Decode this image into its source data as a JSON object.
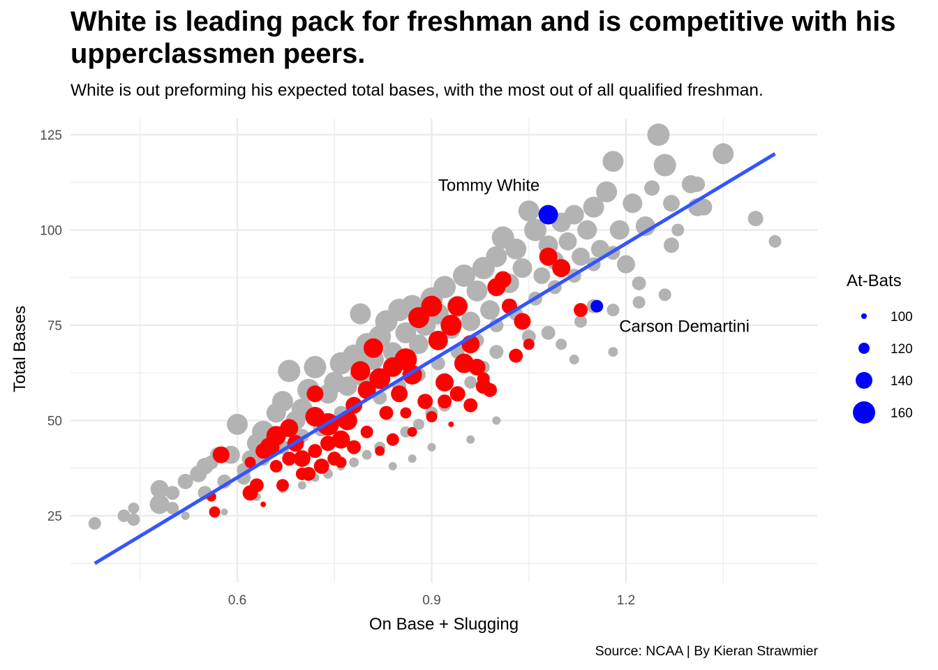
{
  "chart_data": {
    "type": "scatter",
    "title": "White is leading pack for freshman and is competitive with his upperclassmen peers.",
    "subtitle": "White is out preforming his expected total bases, with the most out of all qualified freshman.",
    "caption": "Source: NCAA | By Kieran Strawmier",
    "xlabel": "On Base + Slugging",
    "ylabel": "Total Bases",
    "xlim": [
      0.325,
      1.485
    ],
    "ylim": [
      8,
      128
    ],
    "x_ticks": [
      0.6,
      0.9,
      1.2
    ],
    "x_tick_labels": [
      "0.6",
      "0.9",
      "1.2"
    ],
    "x_minor_ticks": [
      0.45,
      0.75,
      1.05,
      1.35
    ],
    "y_ticks": [
      25,
      50,
      75,
      100,
      125
    ],
    "y_tick_labels": [
      "25",
      "50",
      "75",
      "100",
      "125"
    ],
    "y_minor_ticks": [
      12.5,
      37.5,
      62.5,
      87.5,
      112.5
    ],
    "grid": true,
    "size_legend": {
      "title": "At-Bats",
      "placement": "right",
      "values": [
        100,
        120,
        140,
        160
      ],
      "labels": [
        "100",
        "120",
        "140",
        "160"
      ],
      "color": "#0000ff"
    },
    "colors": {
      "other_players": "#b3b3b3",
      "freshmen": "#ff0000",
      "highlighted": "#0000ff",
      "trend_line": "#3355ff",
      "grid": "#ebebeb"
    },
    "trend_line": {
      "x": [
        0.38,
        1.43
      ],
      "y": [
        12.5,
        120
      ]
    },
    "series": [
      {
        "name": "Other players",
        "color": "#b3b3b3",
        "points": [
          [
            0.38,
            23,
            125
          ],
          [
            0.425,
            25,
            125
          ],
          [
            0.44,
            27,
            120
          ],
          [
            0.44,
            24,
            125
          ],
          [
            0.48,
            32,
            145
          ],
          [
            0.48,
            28,
            150
          ],
          [
            0.5,
            27,
            125
          ],
          [
            0.5,
            31,
            130
          ],
          [
            0.52,
            34,
            135
          ],
          [
            0.54,
            36,
            140
          ],
          [
            0.55,
            38,
            140
          ],
          [
            0.56,
            39,
            130
          ],
          [
            0.57,
            41,
            135
          ],
          [
            0.59,
            41,
            145
          ],
          [
            0.6,
            49,
            155
          ],
          [
            0.61,
            35,
            130
          ],
          [
            0.62,
            40,
            140
          ],
          [
            0.63,
            44,
            150
          ],
          [
            0.64,
            47,
            160
          ],
          [
            0.65,
            43,
            140
          ],
          [
            0.66,
            52,
            150
          ],
          [
            0.67,
            55,
            155
          ],
          [
            0.68,
            63,
            160
          ],
          [
            0.69,
            50,
            150
          ],
          [
            0.7,
            53,
            155
          ],
          [
            0.71,
            58,
            160
          ],
          [
            0.72,
            64,
            160
          ],
          [
            0.73,
            48,
            140
          ],
          [
            0.74,
            57,
            150
          ],
          [
            0.75,
            60,
            155
          ],
          [
            0.76,
            65,
            160
          ],
          [
            0.77,
            59,
            150
          ],
          [
            0.78,
            67,
            160
          ],
          [
            0.79,
            62,
            155
          ],
          [
            0.79,
            78,
            155
          ],
          [
            0.8,
            70,
            160
          ],
          [
            0.81,
            66,
            155
          ],
          [
            0.82,
            72,
            160
          ],
          [
            0.83,
            76,
            160
          ],
          [
            0.84,
            68,
            150
          ],
          [
            0.85,
            79,
            160
          ],
          [
            0.86,
            73,
            155
          ],
          [
            0.87,
            80,
            160
          ],
          [
            0.88,
            70,
            150
          ],
          [
            0.89,
            75,
            155
          ],
          [
            0.9,
            82,
            160
          ],
          [
            0.91,
            78,
            155
          ],
          [
            0.92,
            85,
            160
          ],
          [
            0.93,
            74,
            150
          ],
          [
            0.94,
            80,
            155
          ],
          [
            0.95,
            88,
            160
          ],
          [
            0.96,
            76,
            150
          ],
          [
            0.97,
            84,
            155
          ],
          [
            0.98,
            90,
            160
          ],
          [
            0.99,
            79,
            150
          ],
          [
            1.0,
            93,
            155
          ],
          [
            1.01,
            98,
            160
          ],
          [
            1.02,
            86,
            150
          ],
          [
            1.03,
            95,
            155
          ],
          [
            1.04,
            90,
            150
          ],
          [
            1.05,
            105,
            155
          ],
          [
            1.06,
            100,
            160
          ],
          [
            1.07,
            88,
            140
          ],
          [
            1.08,
            96,
            150
          ],
          [
            1.09,
            92,
            145
          ],
          [
            1.1,
            102,
            150
          ],
          [
            1.11,
            97,
            145
          ],
          [
            1.12,
            104,
            150
          ],
          [
            1.13,
            93,
            145
          ],
          [
            1.14,
            100,
            150
          ],
          [
            1.15,
            106,
            155
          ],
          [
            1.16,
            95,
            145
          ],
          [
            1.17,
            110,
            155
          ],
          [
            1.18,
            118,
            155
          ],
          [
            1.19,
            100,
            150
          ],
          [
            1.2,
            91,
            145
          ],
          [
            1.21,
            107,
            150
          ],
          [
            1.22,
            86,
            130
          ],
          [
            1.23,
            101,
            150
          ],
          [
            1.24,
            111,
            135
          ],
          [
            1.25,
            125,
            160
          ],
          [
            1.26,
            117,
            160
          ],
          [
            1.27,
            107,
            140
          ],
          [
            1.27,
            96,
            135
          ],
          [
            1.28,
            100,
            125
          ],
          [
            1.3,
            112,
            145
          ],
          [
            1.31,
            112,
            135
          ],
          [
            1.31,
            106,
            145
          ],
          [
            1.32,
            106,
            140
          ],
          [
            1.35,
            120,
            155
          ],
          [
            1.4,
            103,
            135
          ],
          [
            1.43,
            97,
            125
          ],
          [
            1.26,
            83,
            125
          ],
          [
            1.22,
            81,
            125
          ],
          [
            1.18,
            79,
            125
          ],
          [
            1.15,
            80,
            130
          ],
          [
            1.13,
            76,
            125
          ],
          [
            1.08,
            73,
            130
          ],
          [
            1.05,
            72,
            130
          ],
          [
            1.0,
            68,
            130
          ],
          [
            0.98,
            64,
            125
          ],
          [
            0.96,
            60,
            125
          ],
          [
            0.94,
            57,
            120
          ],
          [
            0.92,
            54,
            125
          ],
          [
            0.9,
            52,
            125
          ],
          [
            0.88,
            49,
            120
          ],
          [
            0.86,
            47,
            120
          ],
          [
            0.84,
            45,
            120
          ],
          [
            0.82,
            43,
            120
          ],
          [
            0.8,
            41,
            115
          ],
          [
            0.78,
            39,
            115
          ],
          [
            0.76,
            38,
            110
          ],
          [
            0.74,
            36,
            115
          ],
          [
            0.72,
            35,
            110
          ],
          [
            0.7,
            33,
            110
          ],
          [
            0.67,
            32,
            110
          ],
          [
            0.63,
            30,
            110
          ],
          [
            0.58,
            26,
            105
          ],
          [
            0.52,
            25,
            110
          ],
          [
            0.82,
            56,
            130
          ],
          [
            0.85,
            59,
            130
          ],
          [
            0.88,
            62,
            130
          ],
          [
            0.91,
            65,
            130
          ],
          [
            0.94,
            68,
            130
          ],
          [
            0.97,
            71,
            130
          ],
          [
            1.0,
            75,
            130
          ],
          [
            1.03,
            78,
            130
          ],
          [
            1.06,
            82,
            130
          ],
          [
            1.09,
            85,
            130
          ],
          [
            1.12,
            88,
            130
          ],
          [
            1.15,
            91,
            130
          ],
          [
            1.18,
            94,
            130
          ],
          [
            0.76,
            52,
            130
          ],
          [
            0.73,
            50,
            130
          ],
          [
            0.7,
            46,
            130
          ],
          [
            0.67,
            43,
            130
          ],
          [
            0.64,
            40,
            130
          ],
          [
            0.61,
            37,
            130
          ],
          [
            0.58,
            34,
            130
          ],
          [
            0.55,
            31,
            130
          ],
          [
            1.1,
            70,
            120
          ],
          [
            1.12,
            66,
            115
          ],
          [
            1.18,
            68,
            115
          ],
          [
            0.9,
            43,
            110
          ],
          [
            0.87,
            40,
            110
          ],
          [
            0.84,
            38,
            110
          ],
          [
            0.96,
            45,
            110
          ],
          [
            1.0,
            50,
            110
          ]
        ]
      },
      {
        "name": "Freshmen",
        "color": "#ff0000",
        "points": [
          [
            0.56,
            30,
            115
          ],
          [
            0.565,
            26,
            120
          ],
          [
            0.575,
            41,
            140
          ],
          [
            0.62,
            31,
            135
          ],
          [
            0.63,
            33,
            130
          ],
          [
            0.64,
            28,
            100
          ],
          [
            0.65,
            43,
            150
          ],
          [
            0.66,
            46,
            150
          ],
          [
            0.67,
            33,
            125
          ],
          [
            0.68,
            48,
            145
          ],
          [
            0.69,
            44,
            140
          ],
          [
            0.7,
            40,
            140
          ],
          [
            0.71,
            36,
            130
          ],
          [
            0.72,
            57,
            140
          ],
          [
            0.72,
            51,
            150
          ],
          [
            0.73,
            38,
            135
          ],
          [
            0.74,
            49,
            160
          ],
          [
            0.75,
            40,
            130
          ],
          [
            0.76,
            45,
            145
          ],
          [
            0.77,
            50,
            150
          ],
          [
            0.78,
            54,
            140
          ],
          [
            0.79,
            63,
            150
          ],
          [
            0.8,
            58,
            145
          ],
          [
            0.81,
            69,
            150
          ],
          [
            0.82,
            61,
            155
          ],
          [
            0.83,
            52,
            130
          ],
          [
            0.84,
            64,
            150
          ],
          [
            0.85,
            57,
            140
          ],
          [
            0.86,
            66,
            160
          ],
          [
            0.87,
            62,
            150
          ],
          [
            0.88,
            77,
            155
          ],
          [
            0.89,
            55,
            135
          ],
          [
            0.9,
            80,
            155
          ],
          [
            0.91,
            71,
            150
          ],
          [
            0.92,
            60,
            145
          ],
          [
            0.93,
            75,
            155
          ],
          [
            0.94,
            80,
            150
          ],
          [
            0.95,
            65,
            150
          ],
          [
            0.96,
            70,
            145
          ],
          [
            0.97,
            64,
            140
          ],
          [
            0.98,
            59,
            135
          ],
          [
            0.99,
            58,
            130
          ],
          [
            1.0,
            85,
            145
          ],
          [
            1.01,
            87,
            140
          ],
          [
            1.02,
            80,
            135
          ],
          [
            1.03,
            67,
            130
          ],
          [
            1.04,
            76,
            140
          ],
          [
            1.05,
            70,
            120
          ],
          [
            1.08,
            93,
            145
          ],
          [
            1.1,
            90,
            145
          ],
          [
            1.13,
            79,
            130
          ],
          [
            0.93,
            49,
            100
          ],
          [
            0.87,
            47,
            115
          ],
          [
            0.86,
            52,
            120
          ],
          [
            0.84,
            45,
            125
          ],
          [
            0.82,
            42,
            115
          ],
          [
            0.8,
            47,
            125
          ],
          [
            0.78,
            43,
            130
          ],
          [
            0.76,
            39,
            120
          ],
          [
            0.74,
            44,
            135
          ],
          [
            0.72,
            42,
            130
          ],
          [
            0.7,
            36,
            125
          ],
          [
            0.68,
            40,
            130
          ],
          [
            0.66,
            38,
            125
          ],
          [
            0.64,
            42,
            135
          ],
          [
            0.62,
            39,
            120
          ],
          [
            0.98,
            61,
            125
          ],
          [
            0.96,
            54,
            130
          ],
          [
            0.94,
            57,
            135
          ],
          [
            0.92,
            55,
            130
          ],
          [
            0.9,
            51,
            120
          ]
        ]
      },
      {
        "name": "Highlighted",
        "color": "#0000ff",
        "points": [
          [
            1.08,
            104,
            150
          ],
          [
            1.155,
            80,
            125
          ]
        ]
      }
    ],
    "annotations": [
      {
        "label": "Tommy White",
        "x": 1.08,
        "y": 104
      },
      {
        "label": "Carson Demartini",
        "x": 1.155,
        "y": 80
      }
    ]
  }
}
